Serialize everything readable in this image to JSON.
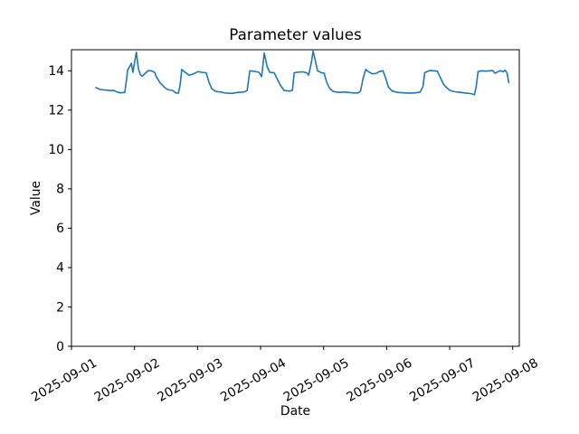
{
  "chart_data": {
    "type": "line",
    "title": "Parameter values",
    "xlabel": "Date",
    "ylabel": "Value",
    "grid": false,
    "line_color": "#1f77b4",
    "background_color": "#ffffff",
    "axis_color": "#000000",
    "x_ticks": [
      "2025-09-01",
      "2025-09-02",
      "2025-09-03",
      "2025-09-04",
      "2025-09-05",
      "2025-09-06",
      "2025-09-07",
      "2025-09-08"
    ],
    "x_tick_rotation_deg": 30,
    "y_ticks": [
      0,
      2,
      4,
      6,
      8,
      10,
      12,
      14
    ],
    "ylim": [
      0,
      15.07
    ],
    "xlim_hours_from_2025_09_01": [
      0,
      170.5
    ],
    "series": [
      {
        "name": "parameter-values",
        "x_hours_from_2025_09_01": [
          9.3,
          11.0,
          12.8,
          14.5,
          16.2,
          17.2,
          18.6,
          20.3,
          21.0,
          21.4,
          21.7,
          22.8,
          23.4,
          24.7,
          25.5,
          26.2,
          26.9,
          27.9,
          29.3,
          30.7,
          31.7,
          32.3,
          33.8,
          35.5,
          36.5,
          38.6,
          39.6,
          40.7,
          41.4,
          42.0,
          43.0,
          44.8,
          46.5,
          48.2,
          49.6,
          51.3,
          52.4,
          53.4,
          54.8,
          56.9,
          58.6,
          61.0,
          63.4,
          65.5,
          66.9,
          67.9,
          69.7,
          71.4,
          72.4,
          73.4,
          74.5,
          75.5,
          77.2,
          78.3,
          79.6,
          81.0,
          82.8,
          84.1,
          84.8,
          86.2,
          87.9,
          89.6,
          90.3,
          91.3,
          92.0,
          92.7,
          93.7,
          95.2,
          96.2,
          97.2,
          98.3,
          99.6,
          101.7,
          104.1,
          106.9,
          109.0,
          110.0,
          111.0,
          112.0,
          113.1,
          114.5,
          115.9,
          117.2,
          118.6,
          119.7,
          120.7,
          122.1,
          124.1,
          126.6,
          129.0,
          131.0,
          132.8,
          133.8,
          134.5,
          135.2,
          136.6,
          137.9,
          139.3,
          140.3,
          141.7,
          142.8,
          144.1,
          146.2,
          148.3,
          150.3,
          152.1,
          153.4,
          154.1,
          154.8,
          156.2,
          157.9,
          159.3,
          160.3,
          161.3,
          162.7,
          163.7,
          164.4,
          165.1,
          165.8,
          166.5
        ],
        "values": [
          13.15,
          13.05,
          13.02,
          13.0,
          13.0,
          12.93,
          12.88,
          12.9,
          13.6,
          14.05,
          14.1,
          14.38,
          13.92,
          14.94,
          14.1,
          13.81,
          13.72,
          13.85,
          14.02,
          13.98,
          13.92,
          13.7,
          13.38,
          13.15,
          13.05,
          13.0,
          12.88,
          12.86,
          13.3,
          14.07,
          13.95,
          13.77,
          13.85,
          13.96,
          13.92,
          13.9,
          13.4,
          13.1,
          12.95,
          12.92,
          12.87,
          12.85,
          12.9,
          12.92,
          13.0,
          14.0,
          13.97,
          13.92,
          13.7,
          14.9,
          14.2,
          13.92,
          13.9,
          13.6,
          13.25,
          13.0,
          12.97,
          13.0,
          13.9,
          13.93,
          13.95,
          13.9,
          13.78,
          14.4,
          15.0,
          14.6,
          14.0,
          13.9,
          13.88,
          13.4,
          13.1,
          12.95,
          12.9,
          12.92,
          12.88,
          12.87,
          12.95,
          13.6,
          14.07,
          13.95,
          13.85,
          13.86,
          13.96,
          14.0,
          13.6,
          13.17,
          12.97,
          12.9,
          12.88,
          12.86,
          12.88,
          12.92,
          13.2,
          13.9,
          13.95,
          14.02,
          14.0,
          13.98,
          13.7,
          13.3,
          13.15,
          13.0,
          12.93,
          12.9,
          12.86,
          12.84,
          12.78,
          13.2,
          13.96,
          14.0,
          13.98,
          14.0,
          14.02,
          13.87,
          13.98,
          14.0,
          13.95,
          14.03,
          13.9,
          13.4
        ]
      }
    ]
  }
}
